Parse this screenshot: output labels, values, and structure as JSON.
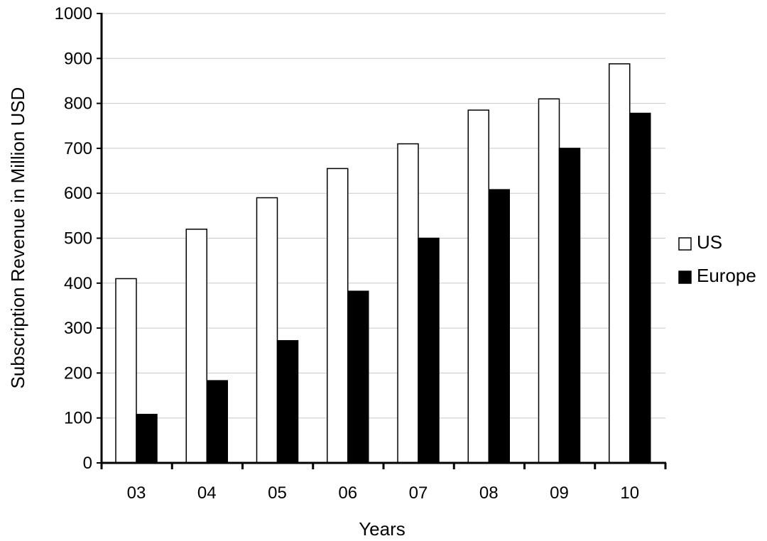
{
  "chart_data": {
    "type": "bar",
    "categories": [
      "03",
      "04",
      "05",
      "06",
      "07",
      "08",
      "09",
      "10"
    ],
    "series": [
      {
        "name": "US",
        "values": [
          410,
          520,
          590,
          655,
          710,
          785,
          810,
          888
        ],
        "fill": "#ffffff",
        "stroke": "#000000"
      },
      {
        "name": "Europe",
        "values": [
          108,
          183,
          272,
          382,
          500,
          608,
          700,
          778
        ],
        "fill": "#000000",
        "stroke": "#000000"
      }
    ],
    "title": "",
    "xlabel": "Years",
    "ylabel": "Subscription Revenue in Million USD",
    "ylim": [
      0,
      1000
    ],
    "yticks": [
      "0",
      "100",
      "200",
      "300",
      "400",
      "500",
      "600",
      "700",
      "800",
      "900",
      "1000"
    ],
    "grid": true,
    "legend_position": "right",
    "colors": {
      "gridline": "#c8c8c8",
      "axis": "#000000"
    }
  }
}
